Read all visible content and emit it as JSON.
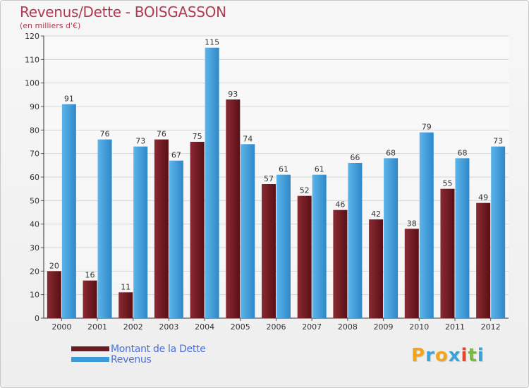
{
  "chart_data": {
    "type": "bar",
    "title": "Revenus/Dette - BOISGASSON",
    "subtitle": "(en milliers d'€)",
    "xlabel": "",
    "ylabel": "",
    "ylim": [
      0,
      120
    ],
    "yticks": [
      0,
      10,
      20,
      30,
      40,
      50,
      60,
      70,
      80,
      90,
      100,
      110,
      120
    ],
    "grid": true,
    "categories": [
      "2000",
      "2001",
      "2002",
      "2003",
      "2004",
      "2005",
      "2006",
      "2007",
      "2008",
      "2009",
      "2010",
      "2011",
      "2012"
    ],
    "series": [
      {
        "name": "Montant de la Dette",
        "color": "#6e1a22",
        "values": [
          20,
          16,
          11,
          76,
          75,
          93,
          57,
          52,
          46,
          42,
          38,
          55,
          49
        ]
      },
      {
        "name": "Revenus",
        "color": "#3d9ad9",
        "values": [
          91,
          76,
          73,
          67,
          115,
          74,
          61,
          61,
          66,
          68,
          79,
          68,
          73
        ]
      }
    ],
    "legend_position": "bottom-left"
  },
  "legend": {
    "items": [
      {
        "label": "Montant de la Dette",
        "color": "#6e1a22"
      },
      {
        "label": "Revenus",
        "color": "#3d9ad9"
      }
    ]
  },
  "logo": {
    "letters": [
      "P",
      "r",
      "o",
      "x",
      "i",
      "t",
      "i"
    ],
    "colors": [
      "#f2a51c",
      "#3aa3d9",
      "#f2a51c",
      "#3aa3d9",
      "#e8452e",
      "#7ab648",
      "#3aa3d9"
    ]
  }
}
